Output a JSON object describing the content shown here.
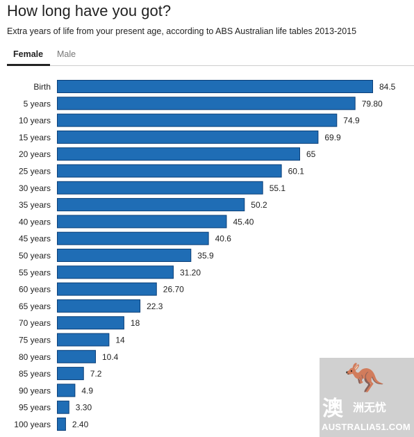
{
  "header": {
    "title": "How long have you got?",
    "subtitle": "Extra years of life from your present age, according to ABS Australian life tables 2013-2015"
  },
  "tabs": [
    {
      "label": "Female",
      "selected": true
    },
    {
      "label": "Male",
      "selected": false
    }
  ],
  "colors": {
    "bar": "#1f6db5",
    "bar_border": "#0b3f78",
    "selected_tab": "#222222",
    "unselected_tab": "#777777"
  },
  "watermark": {
    "glyph": "澳",
    "glyph2": "洲无忧",
    "text": "AUSTRALIA51.COM",
    "icon": "kangaroo-icon"
  },
  "chart_data": {
    "type": "bar",
    "orientation": "horizontal",
    "title": "How long have you got?",
    "subtitle": "Extra years of life from your present age, according to ABS Australian life tables 2013-2015",
    "xlim": [
      0,
      84.5
    ],
    "grid": false,
    "categories": [
      "Birth",
      "5 years",
      "10 years",
      "15 years",
      "20 years",
      "25 years",
      "30 years",
      "35 years",
      "40 years",
      "45 years",
      "50 years",
      "55 years",
      "60 years",
      "65 years",
      "70 years",
      "75 years",
      "80 years",
      "85 years",
      "90 years",
      "95 years",
      "100 years"
    ],
    "values": [
      84.5,
      79.8,
      74.9,
      69.9,
      65,
      60.1,
      55.1,
      50.2,
      45.4,
      40.6,
      35.9,
      31.2,
      26.7,
      22.3,
      18,
      14,
      10.4,
      7.2,
      4.9,
      3.3,
      2.4
    ],
    "value_labels": [
      "84.5",
      "79.80",
      "74.9",
      "69.9",
      "65",
      "60.1",
      "55.1",
      "50.2",
      "45.40",
      "40.6",
      "35.9",
      "31.20",
      "26.70",
      "22.3",
      "18",
      "14",
      "10.4",
      "7.2",
      "4.9",
      "3.30",
      "2.40"
    ]
  }
}
